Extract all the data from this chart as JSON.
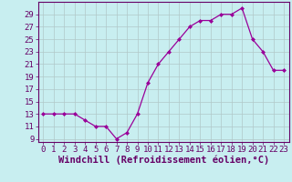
{
  "x": [
    0,
    1,
    2,
    3,
    4,
    5,
    6,
    7,
    8,
    9,
    10,
    11,
    12,
    13,
    14,
    15,
    16,
    17,
    18,
    19,
    20,
    21,
    22,
    23
  ],
  "y": [
    13,
    13,
    13,
    13,
    12,
    11,
    11,
    9,
    10,
    13,
    18,
    21,
    23,
    25,
    27,
    28,
    28,
    29,
    29,
    30,
    25,
    23,
    20,
    20
  ],
  "line_color": "#990099",
  "marker_color": "#990099",
  "bg_color": "#c8eef0",
  "grid_color": "#b0c8c8",
  "border_color": "#660066",
  "xlabel": "Windchill (Refroidissement éolien,°C)",
  "ylim_min": 8.5,
  "ylim_max": 31.0,
  "xlim_min": -0.5,
  "xlim_max": 23.5,
  "yticks": [
    9,
    11,
    13,
    15,
    17,
    19,
    21,
    23,
    25,
    27,
    29
  ],
  "xticks": [
    0,
    1,
    2,
    3,
    4,
    5,
    6,
    7,
    8,
    9,
    10,
    11,
    12,
    13,
    14,
    15,
    16,
    17,
    18,
    19,
    20,
    21,
    22,
    23
  ],
  "tick_fontsize": 6.5,
  "xlabel_fontsize": 7.5,
  "text_color": "#660066"
}
